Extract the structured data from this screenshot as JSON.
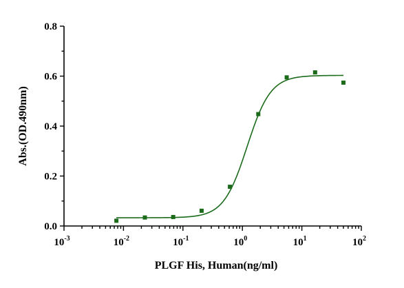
{
  "chart_data": {
    "type": "scatter",
    "xlabel": "PLGF His, Human(ng/ml)",
    "ylabel": "Abs.(OD.490nm)",
    "x_scale": "log",
    "xlim": [
      0.001,
      100
    ],
    "ylim": [
      0,
      0.8
    ],
    "x_ticks": [
      {
        "base": "10",
        "exp": "-3"
      },
      {
        "base": "10",
        "exp": "-2"
      },
      {
        "base": "10",
        "exp": "-1"
      },
      {
        "base": "10",
        "exp": "0"
      },
      {
        "base": "10",
        "exp": "1"
      },
      {
        "base": "10",
        "exp": "2"
      }
    ],
    "y_ticks": [
      "0.0",
      "0.2",
      "0.4",
      "0.6",
      "0.8"
    ],
    "series": [
      {
        "color": "#1b6b1b",
        "marker": "square",
        "points": [
          {
            "x": 0.0076,
            "y": 0.021
          },
          {
            "x": 0.0229,
            "y": 0.034
          },
          {
            "x": 0.0686,
            "y": 0.036
          },
          {
            "x": 0.206,
            "y": 0.061
          },
          {
            "x": 0.617,
            "y": 0.157
          },
          {
            "x": 1.85,
            "y": 0.448
          },
          {
            "x": 5.56,
            "y": 0.595
          },
          {
            "x": 16.7,
            "y": 0.615
          },
          {
            "x": 50,
            "y": 0.574
          }
        ],
        "fit": {
          "model": "four-parameter logistic",
          "bottom": 0.033,
          "top": 0.603,
          "ec50": 1.2,
          "hill": 2.2
        }
      }
    ],
    "grid": false,
    "legend": "none"
  }
}
